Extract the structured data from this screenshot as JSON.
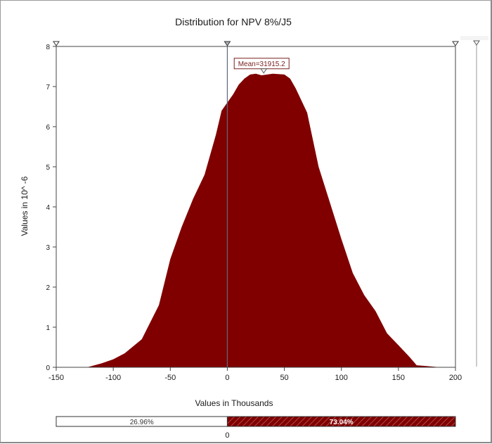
{
  "chart_data": {
    "type": "area",
    "title": "Distribution for NPV 8%/J5",
    "xlabel": "Values in Thousands",
    "ylabel": "Values in 10^ -6",
    "xlim": [
      -150,
      200
    ],
    "ylim": [
      0,
      8
    ],
    "x_ticks": [
      -150,
      -100,
      -50,
      0,
      50,
      100,
      150,
      200
    ],
    "y_ticks": [
      0,
      1,
      2,
      3,
      4,
      5,
      6,
      7,
      8
    ],
    "x_tick_labels": [
      "-150",
      "-100",
      "-50",
      "0",
      "50",
      "100",
      "150",
      "200"
    ],
    "y_tick_labels": [
      "0",
      "1",
      "2",
      "3",
      "4",
      "5",
      "6",
      "7",
      "8"
    ],
    "series": [
      {
        "color": "#800000",
        "x": [
          -123,
          -110,
          -100,
          -90,
          -75,
          -60,
          -50,
          -40,
          -30,
          -20,
          -10,
          -5,
          0,
          5,
          10,
          15,
          20,
          25,
          30,
          40,
          50,
          55,
          60,
          70,
          80,
          90,
          100,
          110,
          120,
          130,
          140,
          150,
          160,
          166,
          175,
          187
        ],
        "y": [
          0,
          0.1,
          0.2,
          0.35,
          0.7,
          1.55,
          2.7,
          3.5,
          4.2,
          4.8,
          5.8,
          6.4,
          6.6,
          6.8,
          7.05,
          7.2,
          7.3,
          7.32,
          7.28,
          7.32,
          7.3,
          7.2,
          6.95,
          6.35,
          5.0,
          4.1,
          3.2,
          2.35,
          1.8,
          1.4,
          0.85,
          0.55,
          0.25,
          0.05,
          0.03,
          0
        ]
      }
    ],
    "mean_label": "Mean=31915.2",
    "mean_value": 31915.2,
    "delimiters": [
      {
        "x": -150,
        "marker": "triangle-down"
      },
      {
        "x": 0,
        "marker": "triangle-down"
      },
      {
        "x": 200,
        "marker": "triangle-down"
      }
    ],
    "marker_line_x": 0,
    "percentile_bar": {
      "split_value": 0,
      "split_label": "0",
      "left_percent": 26.96,
      "right_percent": 73.04,
      "left_label": "26.96%",
      "right_label": "73.04%",
      "left_color": "#ffffff",
      "right_color": "#800000"
    },
    "grid": false
  }
}
